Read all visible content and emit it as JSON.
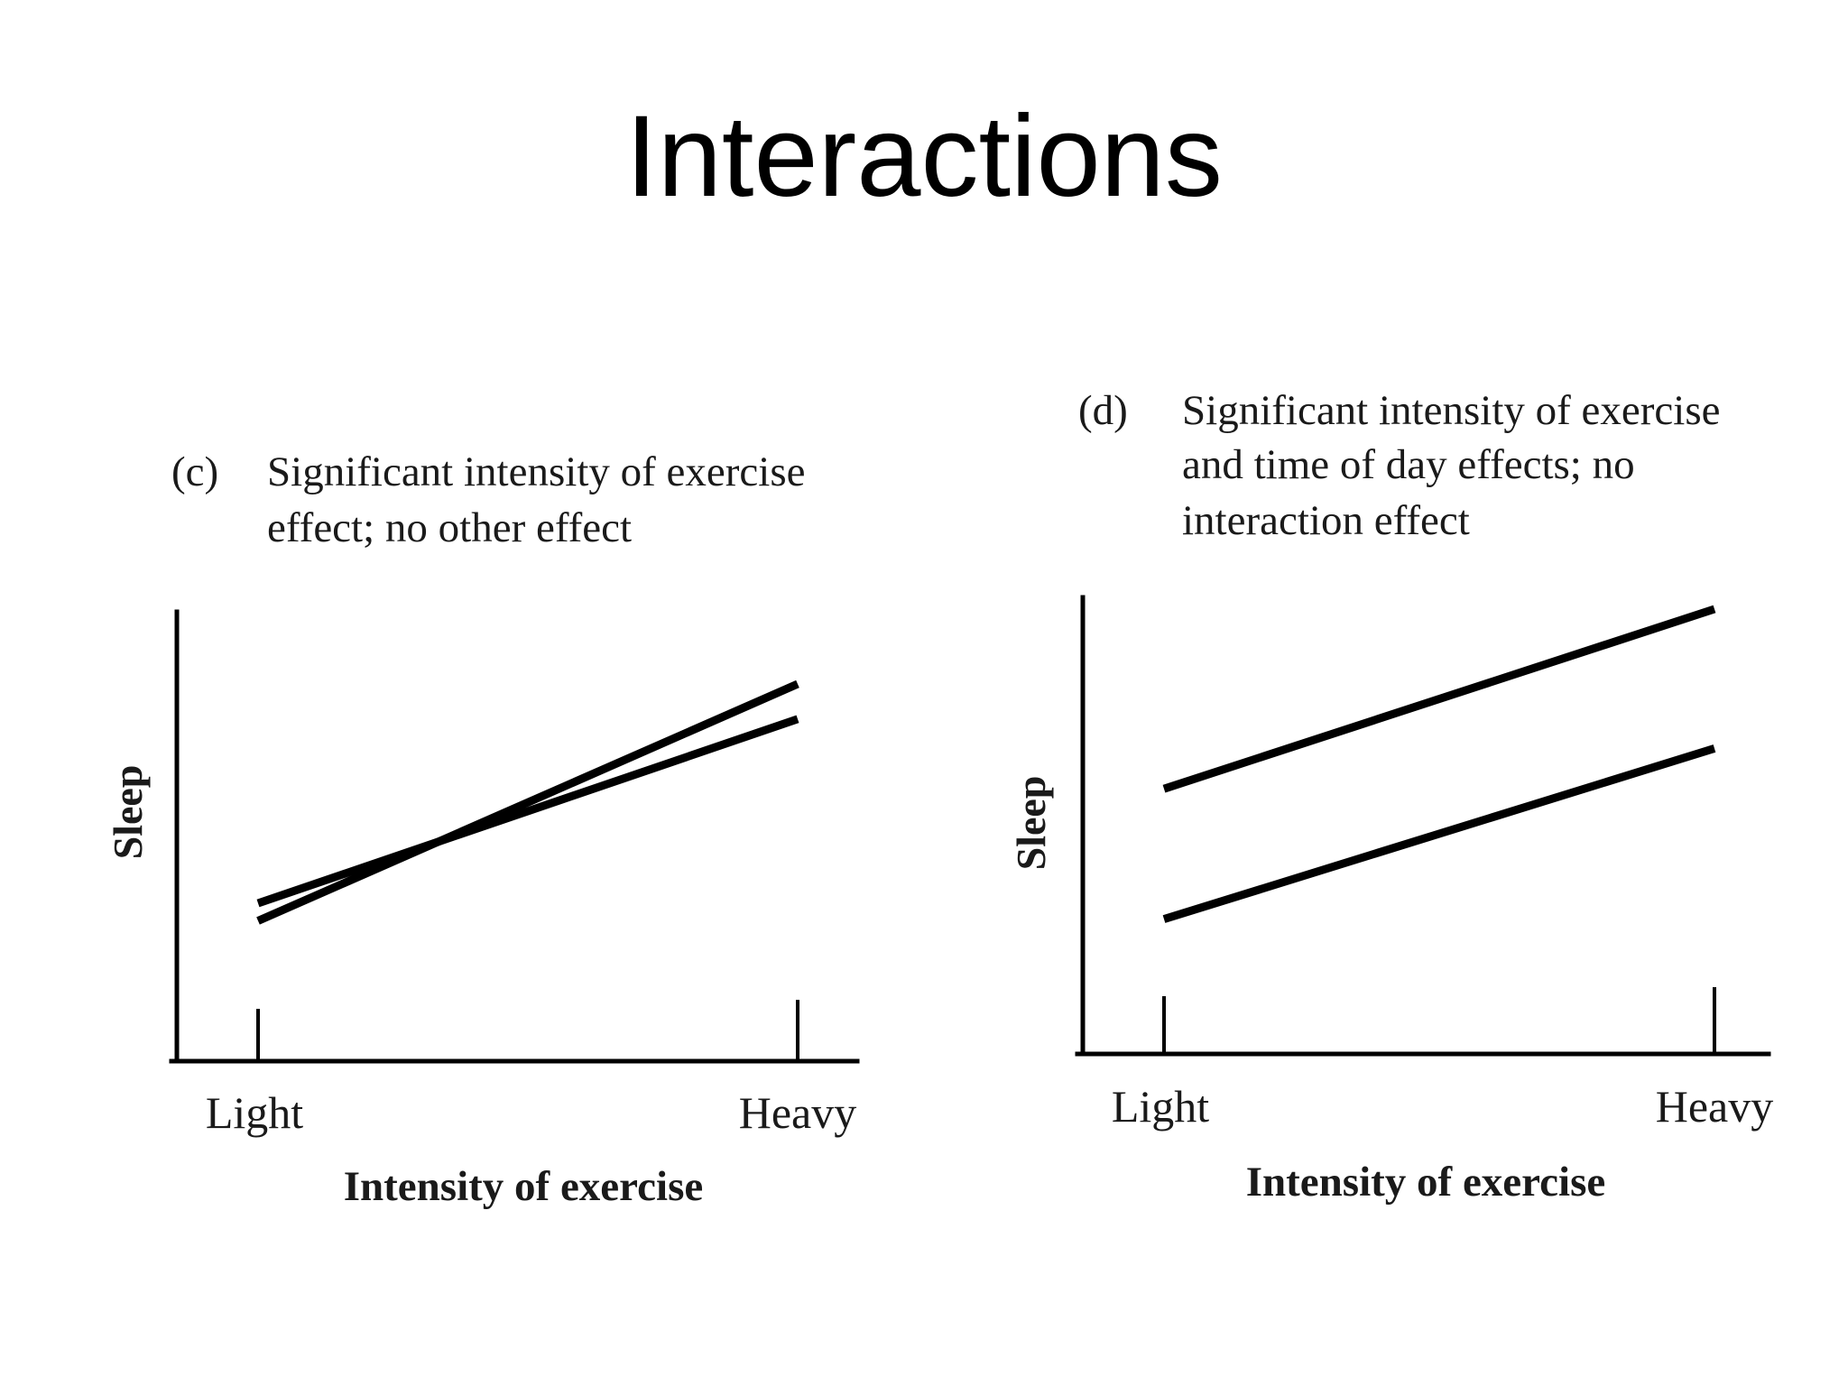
{
  "slide": {
    "title": "Interactions"
  },
  "chart_data": [
    {
      "type": "line",
      "panel_marker": "(c)",
      "caption_lines": [
        "Significant intensity of exercise",
        "effect; no other effect"
      ],
      "xlabel": "Intensity of exercise",
      "ylabel": "Sleep",
      "categories": [
        "Light",
        "Heavy"
      ],
      "ylim": [
        0,
        100
      ],
      "grid": false,
      "series": [
        {
          "values": [
            32,
            86
          ]
        },
        {
          "values": [
            36,
            78
          ]
        }
      ]
    },
    {
      "type": "line",
      "panel_marker": "(d)",
      "caption_lines": [
        "Significant intensity of exercise",
        "and time of day effects; no",
        "interaction effect"
      ],
      "xlabel": "Intensity of exercise",
      "ylabel": "Sleep",
      "categories": [
        "Light",
        "Heavy"
      ],
      "ylim": [
        0,
        100
      ],
      "grid": false,
      "series": [
        {
          "values": [
            59,
            99
          ]
        },
        {
          "values": [
            30,
            68
          ]
        }
      ]
    }
  ]
}
